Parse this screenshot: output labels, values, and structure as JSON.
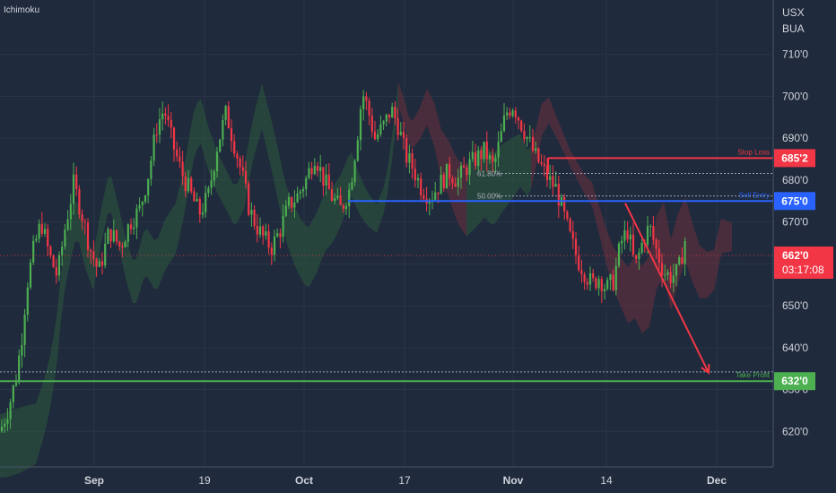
{
  "indicator_label": "Ichimoku",
  "currency": {
    "line1": "USX",
    "line2": "BUA"
  },
  "chart_data": {
    "type": "candlestick",
    "title": "",
    "indicator": "Ichimoku",
    "y_axis": {
      "ticks": [
        "710'0",
        "700'0",
        "690'0",
        "680'0",
        "670'0",
        "660'0",
        "650'0",
        "640'0",
        "630'0",
        "620'0"
      ],
      "values": [
        710,
        700,
        690,
        680,
        670,
        660,
        650,
        640,
        630,
        620
      ],
      "range": [
        611.5,
        723
      ]
    },
    "x_axis": {
      "ticks": [
        "Sep",
        "19",
        "Oct",
        "17",
        "Nov",
        "14",
        "Dec"
      ]
    },
    "current_price": {
      "label": "662'0",
      "value": 662.0,
      "countdown": "03:17:08"
    },
    "levels": [
      {
        "name": "Stop Loss",
        "label": "685'2",
        "value": 685.25,
        "color": "#f23645"
      },
      {
        "name": "Sell Entry",
        "label": "675'0",
        "value": 675.0,
        "color": "#2962ff"
      },
      {
        "name": "Take Profit",
        "label": "632'0",
        "value": 632.0,
        "color": "#4caf50"
      }
    ],
    "fibonacci": [
      {
        "label": "61.80%",
        "value": 681.6
      },
      {
        "label": "50.00%",
        "value": 676.2
      }
    ],
    "projection": {
      "from_value": 674.5,
      "to_value": 634.0,
      "color": "#f23645"
    },
    "take_profit_dotted_value": 634.2,
    "series_close_path": [
      [
        0,
        620
      ],
      [
        10,
        626
      ],
      [
        18,
        633
      ],
      [
        24,
        642
      ],
      [
        30,
        655
      ],
      [
        38,
        664
      ],
      [
        46,
        670
      ],
      [
        55,
        662
      ],
      [
        64,
        657
      ],
      [
        72,
        668
      ],
      [
        82,
        679
      ],
      [
        90,
        673
      ],
      [
        100,
        664
      ],
      [
        110,
        658
      ],
      [
        122,
        668
      ],
      [
        134,
        664
      ],
      [
        145,
        670
      ],
      [
        156,
        673
      ],
      [
        166,
        682
      ],
      [
        175,
        693
      ],
      [
        183,
        697
      ],
      [
        192,
        689
      ],
      [
        202,
        682
      ],
      [
        212,
        677
      ],
      [
        222,
        672
      ],
      [
        232,
        676
      ],
      [
        242,
        688
      ],
      [
        252,
        696
      ],
      [
        262,
        688
      ],
      [
        270,
        681
      ],
      [
        278,
        673
      ],
      [
        286,
        669
      ],
      [
        294,
        666
      ],
      [
        303,
        664
      ],
      [
        312,
        668
      ],
      [
        322,
        674
      ],
      [
        331,
        676
      ],
      [
        341,
        680
      ],
      [
        351,
        686
      ],
      [
        361,
        680
      ],
      [
        370,
        676
      ],
      [
        380,
        673
      ],
      [
        390,
        678
      ],
      [
        398,
        690
      ],
      [
        404,
        701
      ],
      [
        410,
        697
      ],
      [
        418,
        690
      ],
      [
        428,
        693
      ],
      [
        436,
        697
      ],
      [
        444,
        693
      ],
      [
        452,
        686
      ],
      [
        460,
        683
      ],
      [
        470,
        678
      ],
      [
        480,
        676
      ],
      [
        490,
        679
      ],
      [
        500,
        682
      ],
      [
        510,
        680
      ],
      [
        520,
        683
      ],
      [
        530,
        685
      ],
      [
        540,
        687
      ],
      [
        550,
        683
      ],
      [
        558,
        690
      ],
      [
        564,
        696
      ],
      [
        572,
        698
      ],
      [
        580,
        694
      ],
      [
        588,
        690
      ],
      [
        596,
        686
      ],
      [
        604,
        683
      ],
      [
        612,
        680
      ],
      [
        620,
        678
      ],
      [
        628,
        672
      ],
      [
        636,
        666
      ],
      [
        644,
        661
      ],
      [
        652,
        658
      ],
      [
        660,
        655
      ],
      [
        668,
        657
      ],
      [
        676,
        654
      ],
      [
        684,
        656
      ],
      [
        692,
        665
      ],
      [
        700,
        668
      ],
      [
        708,
        659
      ],
      [
        716,
        665
      ],
      [
        724,
        669
      ],
      [
        732,
        663
      ],
      [
        740,
        658
      ],
      [
        748,
        657
      ],
      [
        756,
        658
      ],
      [
        764,
        666
      ]
    ]
  },
  "colors": {
    "background": "#1f2a3c",
    "up": "#4caf50",
    "down": "#f23645",
    "cloud_green": "#2c5a3c",
    "cloud_red": "#6b2f3c",
    "grid": "#2a3548",
    "axis_text": "#d1d4dc"
  }
}
